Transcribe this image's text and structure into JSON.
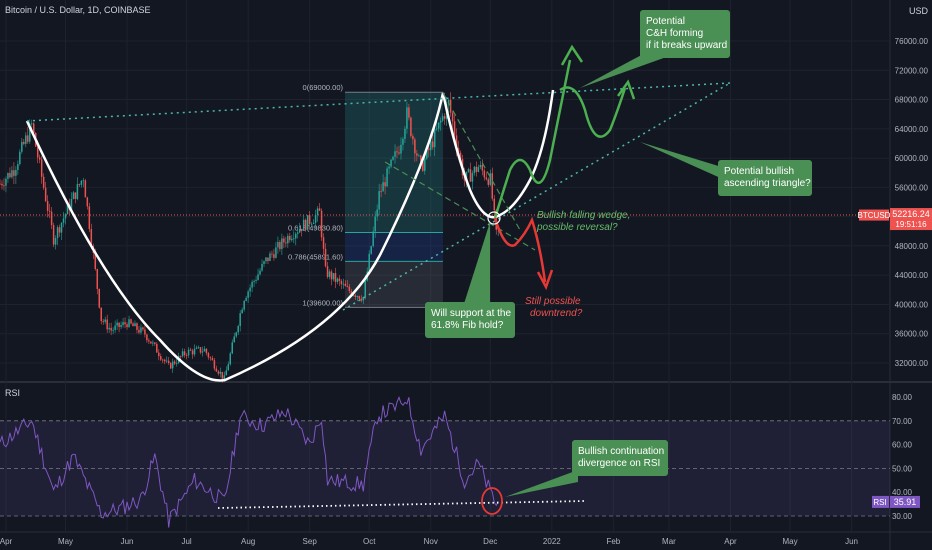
{
  "header": {
    "symbol_title": "Bitcoin / U.S. Dollar, 1D, COINBASE",
    "currency": "USD"
  },
  "chart_data": [
    {
      "type": "candlestick",
      "title": "Bitcoin / U.S. Dollar, 1D, COINBASE",
      "x_ticks": [
        "Apr",
        "May",
        "Jun",
        "Jul",
        "Aug",
        "Sep",
        "Oct",
        "Nov",
        "Dec",
        "2022",
        "Feb",
        "Mar",
        "Apr",
        "May",
        "Jun"
      ],
      "y_ticks": [
        32000,
        36000,
        40000,
        44000,
        48000,
        52000,
        56000,
        60000,
        64000,
        68000,
        72000,
        76000
      ],
      "ylim": [
        28500,
        81000
      ],
      "last_price": {
        "label": "BTCUSD",
        "value": "52216.24",
        "countdown": "19:51:16"
      },
      "price_path": [
        [
          "2021-03-29",
          56500
        ],
        [
          "2021-04-05",
          58500
        ],
        [
          "2021-04-14",
          64500
        ],
        [
          "2021-04-25",
          49000
        ],
        [
          "2021-05-10",
          57500
        ],
        [
          "2021-05-19",
          38000
        ],
        [
          "2021-05-24",
          36500
        ],
        [
          "2021-06-01",
          37500
        ],
        [
          "2021-06-10",
          36000
        ],
        [
          "2021-06-22",
          31500
        ],
        [
          "2021-07-01",
          33500
        ],
        [
          "2021-07-10",
          33800
        ],
        [
          "2021-07-20",
          29800
        ],
        [
          "2021-07-30",
          41000
        ],
        [
          "2021-08-10",
          46000
        ],
        [
          "2021-08-22",
          49500
        ],
        [
          "2021-09-06",
          52500
        ],
        [
          "2021-09-09",
          44500
        ],
        [
          "2021-09-20",
          42000
        ],
        [
          "2021-09-28",
          41000
        ],
        [
          "2021-10-06",
          55000
        ],
        [
          "2021-10-16",
          61500
        ],
        [
          "2021-10-20",
          66000
        ],
        [
          "2021-10-27",
          58500
        ],
        [
          "2021-11-10",
          67500
        ],
        [
          "2021-11-18",
          57000
        ],
        [
          "2021-11-25",
          58800
        ],
        [
          "2021-12-01",
          57000
        ],
        [
          "2021-12-04",
          49500
        ],
        [
          "2021-12-06",
          50500
        ]
      ],
      "fibonacci": [
        {
          "ratio": 0,
          "value": 69000,
          "label": "0(69000.00)"
        },
        {
          "ratio": 0.618,
          "value": 49830.8,
          "label": "0.618(49830.80)"
        },
        {
          "ratio": 0.786,
          "value": 45891.6,
          "label": "0.786(45891.60)"
        },
        {
          "ratio": 1,
          "value": 39600,
          "label": "1(39600.00)"
        }
      ],
      "annotations": [
        "Potential\nC&H forming\nif it breaks upward",
        "Potential bullish\nascending triangle?",
        "Bullish falling wedge,\npossible reversal?",
        "Still possible\ndowntrend?",
        "Will support at the\n61.8% Fib hold?"
      ]
    },
    {
      "type": "line",
      "title": "RSI",
      "y_ticks": [
        30,
        40,
        50,
        60,
        70,
        80
      ],
      "ylim": [
        26,
        85
      ],
      "bands": {
        "upper": 70,
        "lower": 30
      },
      "last_value": "35.91",
      "rsi_path": [
        [
          "2021-03-29",
          60
        ],
        [
          "2021-04-14",
          70
        ],
        [
          "2021-04-25",
          40
        ],
        [
          "2021-05-05",
          55
        ],
        [
          "2021-05-19",
          31
        ],
        [
          "2021-05-28",
          33
        ],
        [
          "2021-06-08",
          37
        ],
        [
          "2021-06-15",
          55
        ],
        [
          "2021-06-22",
          28
        ],
        [
          "2021-07-05",
          45
        ],
        [
          "2021-07-20",
          36
        ],
        [
          "2021-07-28",
          72
        ],
        [
          "2021-08-08",
          68
        ],
        [
          "2021-08-20",
          74
        ],
        [
          "2021-09-01",
          60
        ],
        [
          "2021-09-07",
          72
        ],
        [
          "2021-09-10",
          45
        ],
        [
          "2021-09-21",
          44
        ],
        [
          "2021-09-28",
          43
        ],
        [
          "2021-10-05",
          72
        ],
        [
          "2021-10-17",
          77
        ],
        [
          "2021-10-20",
          80
        ],
        [
          "2021-10-27",
          58
        ],
        [
          "2021-11-08",
          72
        ],
        [
          "2021-11-18",
          45
        ],
        [
          "2021-11-25",
          52
        ],
        [
          "2021-12-01",
          40
        ],
        [
          "2021-12-04",
          35
        ],
        [
          "2021-12-06",
          36
        ]
      ],
      "annotations": [
        "Bullish continuation\ndivergence on RSI"
      ]
    }
  ],
  "colors": {
    "background": "#131722",
    "up": "#26a69a",
    "down": "#ef5350",
    "annotation_green": "#4a8f54",
    "annotation_red": "#e53935",
    "rsi_line": "#7e57c2",
    "curve": "#ffffff",
    "trend_dotted": "#4db6ac"
  }
}
